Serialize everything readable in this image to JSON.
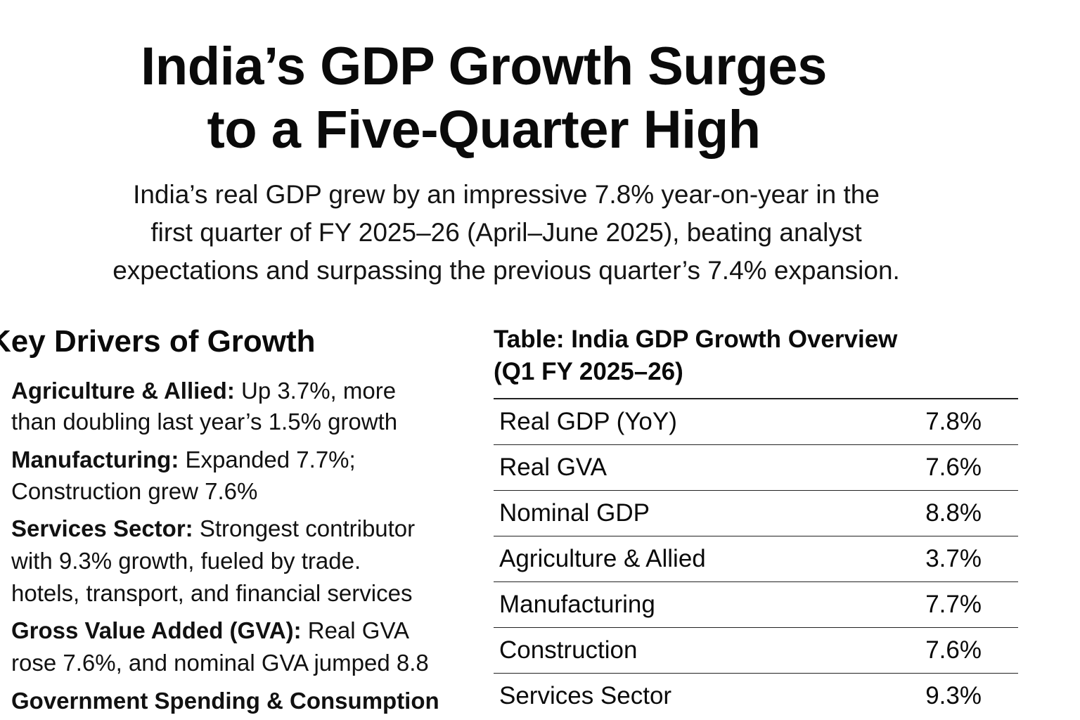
{
  "headline": {
    "line1": "India’s GDP Growth Surges",
    "line2": "to a Five-Quarter High"
  },
  "intro": {
    "line1": "India’s real GDP grew by an impressive 7.8% year-on-year in the",
    "line2": "first quarter of FY 2025–26 (April–June 2025), beating analyst",
    "line3": "expectations and surpassing the previous quarter’s 7.4% expansion."
  },
  "drivers": {
    "heading": "Key Drivers of Growth",
    "items": [
      {
        "label": "Agriculture & Allied:",
        "line1": " Up 3.7%, more",
        "line2": "than doubling last year’s 1.5% growth"
      },
      {
        "label": "Manufacturing:",
        "line1": " Expanded 7.7%;",
        "line2": "Construction grew 7.6%"
      },
      {
        "label": "Services Sector:",
        "line1": " Strongest contributor",
        "line2": "with 9.3% growth, fueled by trade.",
        "line3": "hotels, transport, and financial services"
      },
      {
        "label": "Gross Value Added (GVA):",
        "line1": " Real GVA",
        "line2": "rose 7.6%, and nominal GVA jumped 8.8"
      },
      {
        "label": "Government Spending & Consumption"
      }
    ]
  },
  "table": {
    "title_line1": "Table: India GDP Growth Overview",
    "title_line2": "(Q1 FY 2025–26)",
    "rows": [
      {
        "metric": "Real GDP (YoY)",
        "value": "7.8%"
      },
      {
        "metric": "Real GVA",
        "value": "7.6%"
      },
      {
        "metric": "Nominal GDP",
        "value": "8.8%"
      },
      {
        "metric": "Agriculture & Allied",
        "value": "3.7%"
      },
      {
        "metric": "Manufacturing",
        "value": "7.7%"
      },
      {
        "metric": "Construction",
        "value": "7.6%"
      },
      {
        "metric": "Services Sector",
        "value": "9.3%"
      }
    ]
  }
}
